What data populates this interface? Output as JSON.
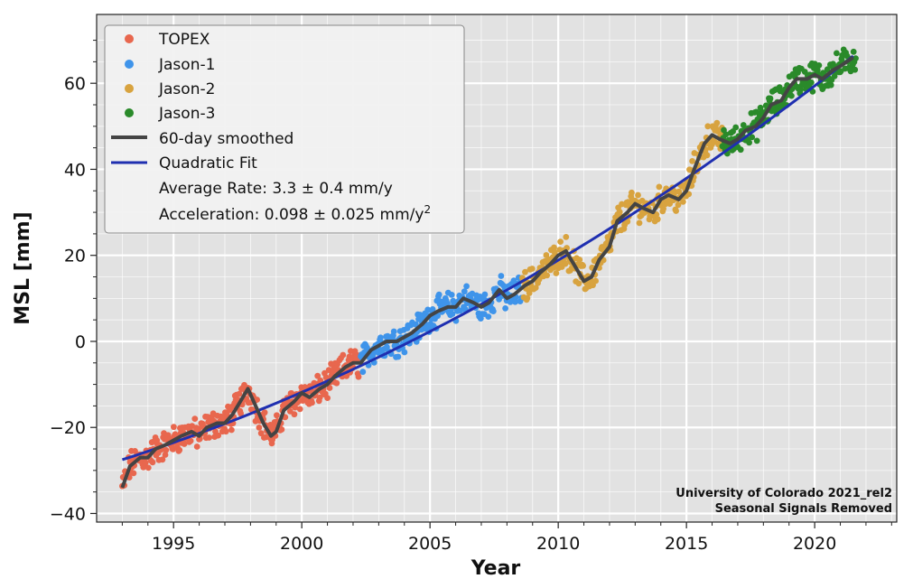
{
  "chart_data": {
    "type": "scatter",
    "xlabel": "Year",
    "ylabel": "MSL [mm]",
    "xlim": [
      1992.0,
      2023.2
    ],
    "ylim": [
      -42,
      76
    ],
    "x_ticks": [
      1995,
      2000,
      2005,
      2010,
      2015,
      2020
    ],
    "y_ticks": [
      -40,
      -20,
      0,
      20,
      40,
      60
    ],
    "grid": true,
    "legend_position": "top-left",
    "series": [
      {
        "name": "TOPEX",
        "color": "#e8674e",
        "x_range": [
          1993.0,
          2002.3
        ]
      },
      {
        "name": "Jason-1",
        "color": "#3f94ea",
        "x_range": [
          2002.3,
          2008.6
        ]
      },
      {
        "name": "Jason-2",
        "color": "#d8a33f",
        "x_range": [
          2008.6,
          2016.4
        ]
      },
      {
        "name": "Jason-3",
        "color": "#2a8a2a",
        "x_range": [
          2016.4,
          2021.6
        ]
      },
      {
        "name": "60-day smoothed",
        "color": "#444444",
        "kind": "line"
      },
      {
        "name": "Quadratic Fit",
        "color": "#1f2fb0",
        "kind": "line"
      }
    ],
    "smoothed_points": [
      [
        1993.0,
        -34
      ],
      [
        1993.3,
        -29
      ],
      [
        1993.7,
        -27
      ],
      [
        1994.0,
        -27
      ],
      [
        1994.3,
        -25
      ],
      [
        1994.7,
        -24
      ],
      [
        1995.0,
        -23
      ],
      [
        1995.3,
        -22
      ],
      [
        1995.7,
        -21
      ],
      [
        1996.0,
        -22
      ],
      [
        1996.3,
        -20
      ],
      [
        1996.7,
        -19
      ],
      [
        1997.0,
        -19
      ],
      [
        1997.3,
        -17
      ],
      [
        1997.7,
        -13
      ],
      [
        1997.9,
        -11
      ],
      [
        1998.2,
        -15
      ],
      [
        1998.5,
        -19
      ],
      [
        1998.8,
        -22
      ],
      [
        1999.0,
        -21
      ],
      [
        1999.3,
        -16
      ],
      [
        1999.7,
        -14
      ],
      [
        2000.0,
        -12
      ],
      [
        2000.3,
        -13
      ],
      [
        2000.7,
        -11
      ],
      [
        2001.0,
        -10
      ],
      [
        2001.3,
        -8
      ],
      [
        2001.7,
        -6
      ],
      [
        2002.0,
        -5
      ],
      [
        2002.3,
        -5
      ],
      [
        2002.7,
        -2
      ],
      [
        2003.0,
        -1
      ],
      [
        2003.3,
        0
      ],
      [
        2003.7,
        0
      ],
      [
        2004.0,
        1
      ],
      [
        2004.3,
        2
      ],
      [
        2004.7,
        4
      ],
      [
        2005.0,
        6
      ],
      [
        2005.3,
        7
      ],
      [
        2005.7,
        8
      ],
      [
        2006.0,
        8
      ],
      [
        2006.3,
        10
      ],
      [
        2006.7,
        9
      ],
      [
        2007.0,
        8
      ],
      [
        2007.3,
        9
      ],
      [
        2007.7,
        12
      ],
      [
        2008.0,
        10
      ],
      [
        2008.3,
        11
      ],
      [
        2008.7,
        13
      ],
      [
        2009.0,
        14
      ],
      [
        2009.3,
        16
      ],
      [
        2009.7,
        18
      ],
      [
        2010.0,
        20
      ],
      [
        2010.3,
        21
      ],
      [
        2010.6,
        18
      ],
      [
        2011.0,
        14
      ],
      [
        2011.3,
        15
      ],
      [
        2011.6,
        19
      ],
      [
        2012.0,
        22
      ],
      [
        2012.3,
        28
      ],
      [
        2012.7,
        30
      ],
      [
        2013.0,
        32
      ],
      [
        2013.3,
        31
      ],
      [
        2013.7,
        30
      ],
      [
        2014.0,
        33
      ],
      [
        2014.3,
        34
      ],
      [
        2014.7,
        33
      ],
      [
        2015.0,
        35
      ],
      [
        2015.3,
        40
      ],
      [
        2015.7,
        46
      ],
      [
        2016.0,
        48
      ],
      [
        2016.3,
        47
      ],
      [
        2016.7,
        46
      ],
      [
        2017.0,
        47
      ],
      [
        2017.3,
        49
      ],
      [
        2017.7,
        50
      ],
      [
        2018.0,
        52
      ],
      [
        2018.3,
        55
      ],
      [
        2018.7,
        56
      ],
      [
        2019.0,
        59
      ],
      [
        2019.3,
        61
      ],
      [
        2019.7,
        61
      ],
      [
        2020.0,
        62
      ],
      [
        2020.3,
        61
      ],
      [
        2020.7,
        63
      ],
      [
        2021.0,
        64
      ],
      [
        2021.5,
        66
      ]
    ],
    "fit": {
      "start_year": 1993.0,
      "end_year": 2021.6,
      "equation_year0": 1993.0,
      "intercept": -27.5,
      "rate": 1.8955,
      "acceleration_half": 0.049
    },
    "annotations": {
      "rate": "Average Rate: 3.3 ± 0.4 mm/y",
      "accel_prefix": "Acceleration: 0.098 ± 0.025 mm/y",
      "accel_superscript": "2",
      "credit_line1": "University of Colorado 2021_rel2",
      "credit_line2": "Seasonal Signals Removed"
    }
  }
}
